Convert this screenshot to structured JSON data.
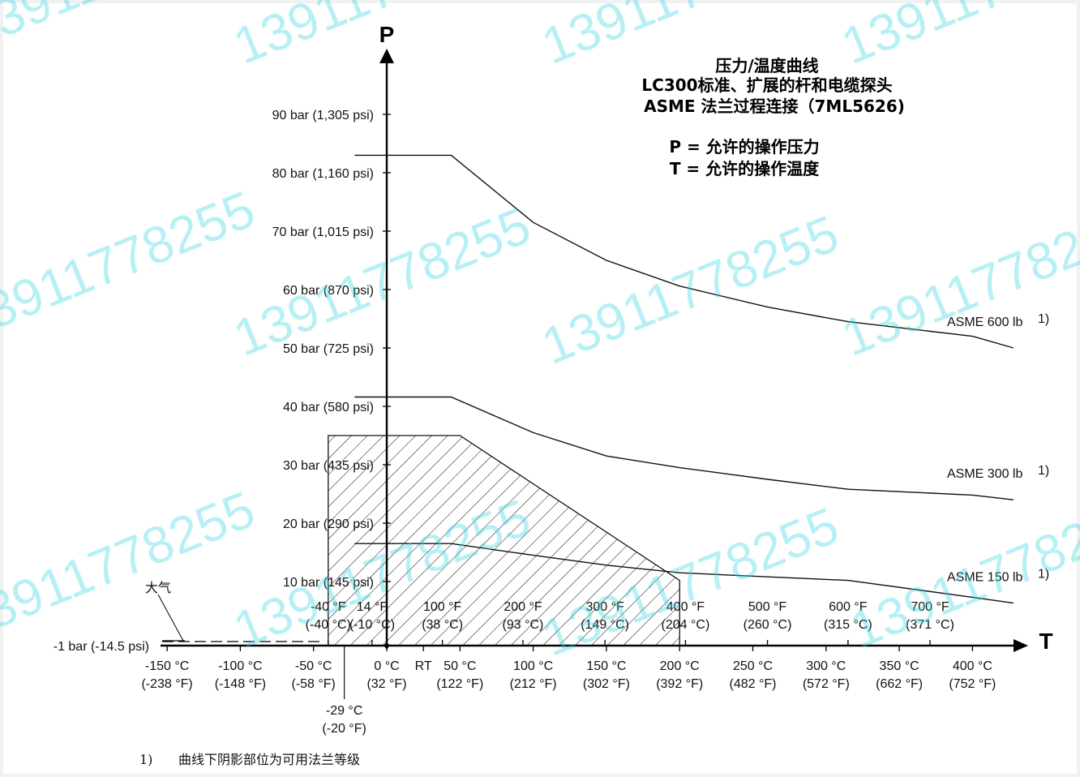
{
  "chart_data": {
    "type": "line",
    "y_axis_name": "P",
    "x_axis_name": "T",
    "title_lines": [
      "压力/温度曲线",
      "LC300标准、扩展的杆和电缆探头",
      "ASME 法兰过程连接（7ML5626)",
      "",
      "P =  允许的操作压力",
      "T =  允许的操作温度"
    ],
    "y_ticks": [
      {
        "value": -1,
        "label": "-1 bar (-14.5 psi)"
      },
      {
        "value": 10,
        "label": "10 bar (145 psi)"
      },
      {
        "value": 20,
        "label": "20 bar (290 psi)"
      },
      {
        "value": 30,
        "label": "30 bar (435 psi)"
      },
      {
        "value": 40,
        "label": "40 bar (580 psi)"
      },
      {
        "value": 50,
        "label": "50 bar (725 psi)"
      },
      {
        "value": 60,
        "label": "60 bar (870 psi)"
      },
      {
        "value": 70,
        "label": "70 bar (1,015 psi)"
      },
      {
        "value": 80,
        "label": "80 bar (1,160 psi)"
      },
      {
        "value": 90,
        "label": "90 bar (1,305 psi)"
      }
    ],
    "x_ticks_below": [
      {
        "value": -150,
        "line1": "-150 °C",
        "line2": "(-238 °F)"
      },
      {
        "value": -100,
        "line1": "-100 °C",
        "line2": "(-148 °F)"
      },
      {
        "value": -50,
        "line1": "-50 °C",
        "line2": "(-58 °F)"
      },
      {
        "value": 0,
        "line1": "0 °C",
        "line2": "(32 °F)"
      },
      {
        "value": 25,
        "line1": "RT",
        "line2": ""
      },
      {
        "value": 50,
        "line1": "50 °C",
        "line2": "(122 °F)"
      },
      {
        "value": 100,
        "line1": "100 °C",
        "line2": "(212 °F)"
      },
      {
        "value": 150,
        "line1": "150 °C",
        "line2": "(302 °F)"
      },
      {
        "value": 200,
        "line1": "200 °C",
        "line2": "(392 °F)"
      },
      {
        "value": 250,
        "line1": "250 °C",
        "line2": "(482 °F)"
      },
      {
        "value": 300,
        "line1": "300 °C",
        "line2": "(572 °F)"
      },
      {
        "value": 350,
        "line1": "350 °C",
        "line2": "(662 °F)"
      },
      {
        "value": 400,
        "line1": "400 °C",
        "line2": "(752 °F)"
      }
    ],
    "x_ticks_above": [
      {
        "value": -40,
        "line1": "-40 °F",
        "line2": "(-40 °C)"
      },
      {
        "value": -10,
        "line1": "14 °F",
        "line2": "(-10 °C)"
      },
      {
        "value": 38,
        "line1": "100 °F",
        "line2": "(38 °C)"
      },
      {
        "value": 93,
        "line1": "200 °F",
        "line2": "(93 °C)"
      },
      {
        "value": 149,
        "line1": "300 °F",
        "line2": "(149 °C)"
      },
      {
        "value": 204,
        "line1": "400 °F",
        "line2": "(204 °C)"
      },
      {
        "value": 260,
        "line1": "500 °F",
        "line2": "(260 °C)"
      },
      {
        "value": 315,
        "line1": "600 °F",
        "line2": "(315 °C)"
      },
      {
        "value": 371,
        "line1": "700 °F",
        "line2": "(371 °C)"
      }
    ],
    "extra_x_label": {
      "value": -29,
      "line1": "-29 °C",
      "line2": "(-20 °F)"
    },
    "atmosphere_label": "大气",
    "series": [
      {
        "name": "ASME 600 lb",
        "footnote_mark": "1)",
        "x": [
          -22,
          44,
          100,
          150,
          200,
          260,
          315,
          400,
          428
        ],
        "y": [
          83,
          83,
          71.5,
          65,
          60.6,
          57,
          54.5,
          52,
          50
        ]
      },
      {
        "name": "ASME 300 lb",
        "footnote_mark": "1)",
        "x": [
          -22,
          44,
          100,
          150,
          200,
          260,
          315,
          400,
          428
        ],
        "y": [
          41.6,
          41.6,
          35.5,
          31.5,
          29.5,
          27.5,
          25.8,
          24.8,
          24
        ]
      },
      {
        "name": "ASME 150 lb",
        "footnote_mark": "1)",
        "x": [
          -22,
          44,
          100,
          150,
          200,
          260,
          315,
          400,
          428
        ],
        "y": [
          16.5,
          16.5,
          14.5,
          12.8,
          11.5,
          10.8,
          10.2,
          7.3,
          6.3
        ]
      }
    ],
    "shaded_region": {
      "x": [
        -40,
        -40,
        50,
        200,
        200
      ],
      "y": [
        -1,
        35,
        35,
        10.2,
        -1
      ]
    },
    "xlim": [
      -180,
      430
    ],
    "ylim": [
      -1,
      90
    ],
    "grid": false
  },
  "footnote": {
    "mark": "1)",
    "text": "曲线下阴影部位为可用法兰等级"
  },
  "watermark_text": "13911778255"
}
